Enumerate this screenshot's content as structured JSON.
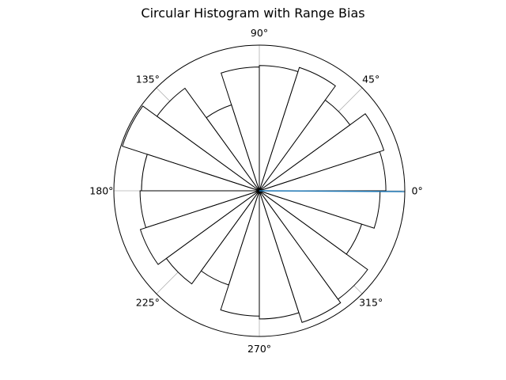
{
  "chart_data": {
    "type": "bar",
    "projection": "polar",
    "title": "Circular Histogram with Range Bias",
    "theta_tick_labels": [
      "0°",
      "45°",
      "90°",
      "135°",
      "180°",
      "225°",
      "270°",
      "315°"
    ],
    "theta_ticks_deg": [
      0,
      45,
      90,
      135,
      180,
      225,
      270,
      315
    ],
    "radial_tick_labels": [],
    "grid": true,
    "bins": 20,
    "bin_width_deg": 18,
    "bin_centers_deg": [
      9,
      27,
      45,
      63,
      81,
      99,
      117,
      135,
      153,
      171,
      189,
      207,
      225,
      243,
      261,
      279,
      297,
      315,
      333,
      351
    ],
    "values": [
      0.87,
      0.9,
      0.77,
      0.89,
      0.86,
      0.85,
      0.62,
      0.87,
      0.99,
      0.81,
      0.82,
      0.86,
      0.79,
      0.68,
      0.86,
      0.88,
      0.95,
      0.92,
      0.74,
      0.83
    ],
    "rlim": [
      0,
      1.0
    ],
    "bar_fill": "#ffffff",
    "bar_edge": "#000000",
    "line_series": {
      "theta_deg": [
        0,
        -0.3
      ],
      "r": [
        0,
        1.0
      ],
      "color": "#1f77b4"
    }
  }
}
